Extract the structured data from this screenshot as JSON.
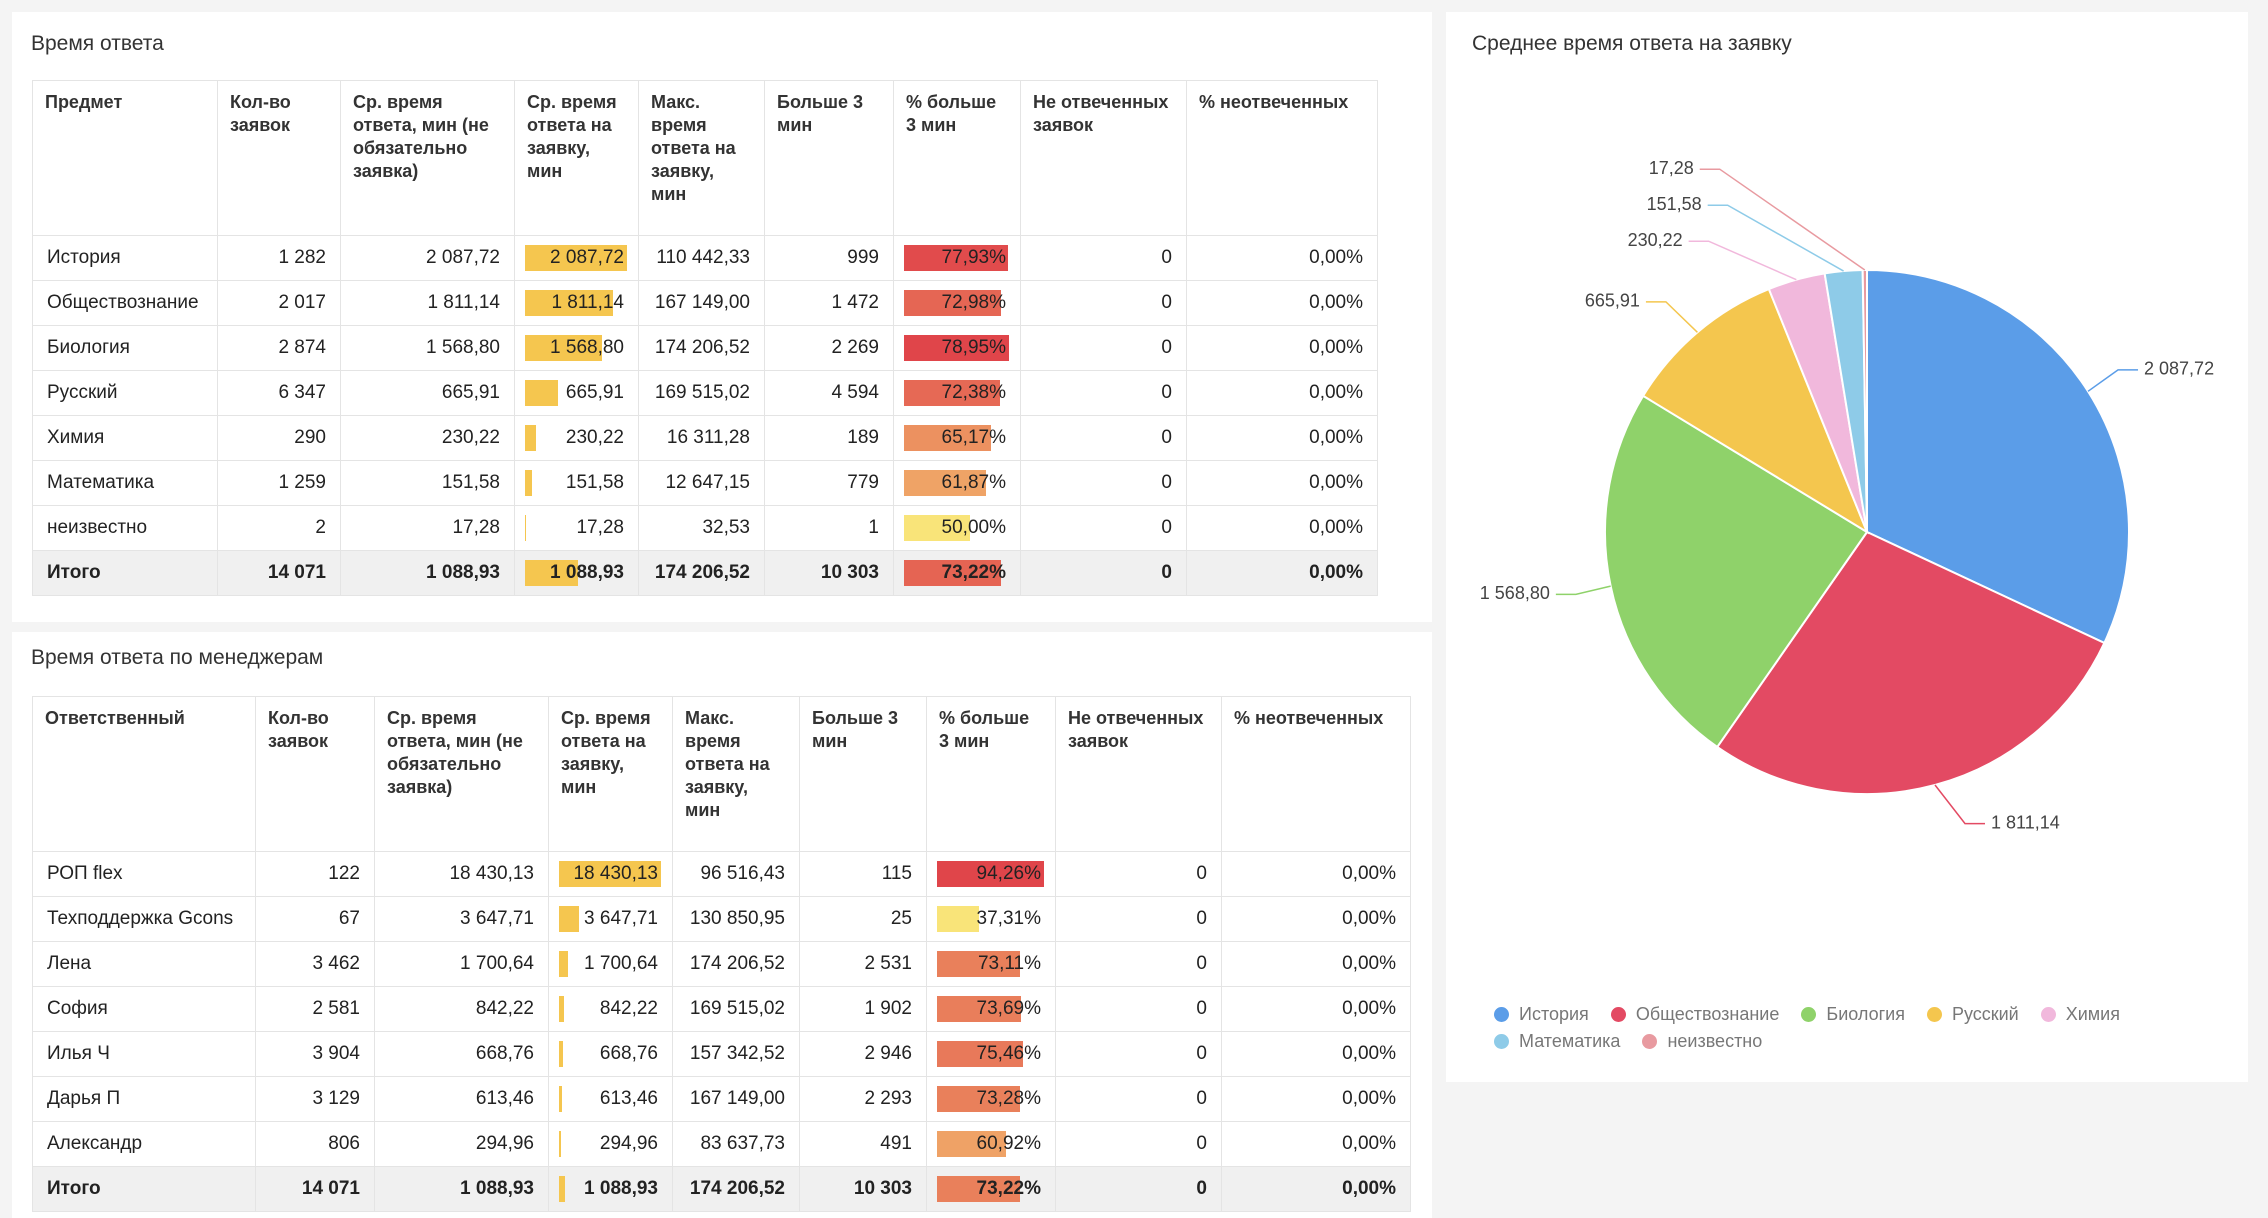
{
  "tables": [
    {
      "title": "Время ответа",
      "columns": [
        "Предмет",
        "Кол-во заявок",
        "Ср. время ответа, мин (не обязательно заявка)",
        "Ср. время ответа на заявку, мин",
        "Макс. время ответа на заявку, мин",
        "Больше 3 мин",
        "% больше 3 мин",
        "Не отвеченных заявок",
        "% неотвеченных"
      ],
      "rows": [
        [
          "История",
          "1 282",
          "2 087,72",
          "2 087,72",
          "110 442,33",
          "999",
          "77,93%",
          "0",
          "0,00%"
        ],
        [
          "Обществознание",
          "2 017",
          "1 811,14",
          "1 811,14",
          "167 149,00",
          "1 472",
          "72,98%",
          "0",
          "0,00%"
        ],
        [
          "Биология",
          "2 874",
          "1 568,80",
          "1 568,80",
          "174 206,52",
          "2 269",
          "78,95%",
          "0",
          "0,00%"
        ],
        [
          "Русский",
          "6 347",
          "665,91",
          "665,91",
          "169 515,02",
          "4 594",
          "72,38%",
          "0",
          "0,00%"
        ],
        [
          "Химия",
          "290",
          "230,22",
          "230,22",
          "16 311,28",
          "189",
          "65,17%",
          "0",
          "0,00%"
        ],
        [
          "Математика",
          "1 259",
          "151,58",
          "151,58",
          "12 647,15",
          "779",
          "61,87%",
          "0",
          "0,00%"
        ],
        [
          "неизвестно",
          "2",
          "17,28",
          "17,28",
          "32,53",
          "1",
          "50,00%",
          "0",
          "0,00%"
        ],
        [
          "Итого",
          "14 071",
          "1 088,93",
          "1 088,93",
          "174 206,52",
          "10 303",
          "73,22%",
          "0",
          "0,00%"
        ]
      ]
    },
    {
      "title": "Время ответа по менеджерам",
      "columns": [
        "Ответственный",
        "Кол-во заявок",
        "Ср. время ответа, мин (не обязательно заявка)",
        "Ср. время ответа на заявку, мин",
        "Макс. время ответа на заявку, мин",
        "Больше 3 мин",
        "% больше 3 мин",
        "Не отвеченных заявок",
        "% неотвеченных"
      ],
      "rows": [
        [
          "РОП flex",
          "122",
          "18 430,13",
          "18 430,13",
          "96 516,43",
          "115",
          "94,26%",
          "0",
          "0,00%"
        ],
        [
          "Техподдержка Gcons",
          "67",
          "3 647,71",
          "3 647,71",
          "130 850,95",
          "25",
          "37,31%",
          "0",
          "0,00%"
        ],
        [
          "Лена",
          "3 462",
          "1 700,64",
          "1 700,64",
          "174 206,52",
          "2 531",
          "73,11%",
          "0",
          "0,00%"
        ],
        [
          "София",
          "2 581",
          "842,22",
          "842,22",
          "169 515,02",
          "1 902",
          "73,69%",
          "0",
          "0,00%"
        ],
        [
          "Илья Ч",
          "3 904",
          "668,76",
          "668,76",
          "157 342,52",
          "2 946",
          "75,46%",
          "0",
          "0,00%"
        ],
        [
          "Дарья П",
          "3 129",
          "613,46",
          "613,46",
          "167 149,00",
          "2 293",
          "73,28%",
          "0",
          "0,00%"
        ],
        [
          "Александр",
          "806",
          "294,96",
          "294,96",
          "83 637,73",
          "491",
          "60,92%",
          "0",
          "0,00%"
        ],
        [
          "Итого",
          "14 071",
          "1 088,93",
          "1 088,93",
          "174 206,52",
          "10 303",
          "73,22%",
          "0",
          "0,00%"
        ]
      ]
    }
  ],
  "bar_color": "#f5c64f",
  "scale_colors": [
    "#f9e479",
    "#e0454a"
  ],
  "chart_data": {
    "type": "pie",
    "title": "Среднее время ответа на заявку",
    "categories": [
      "История",
      "Обществознание",
      "Биология",
      "Русский",
      "Химия",
      "Математика",
      "неизвестно"
    ],
    "values": [
      2087.72,
      1811.14,
      1568.8,
      665.91,
      230.22,
      151.58,
      17.28
    ],
    "value_labels": [
      "2 087,72",
      "1 811,14",
      "1 568,80",
      "665,91",
      "230,22",
      "151,58",
      "17,28"
    ],
    "colors": [
      "#5b9de8",
      "#e34a63",
      "#8fd26a",
      "#f4c64e",
      "#f1b8dc",
      "#8ecbe8",
      "#e89aa0"
    ]
  }
}
